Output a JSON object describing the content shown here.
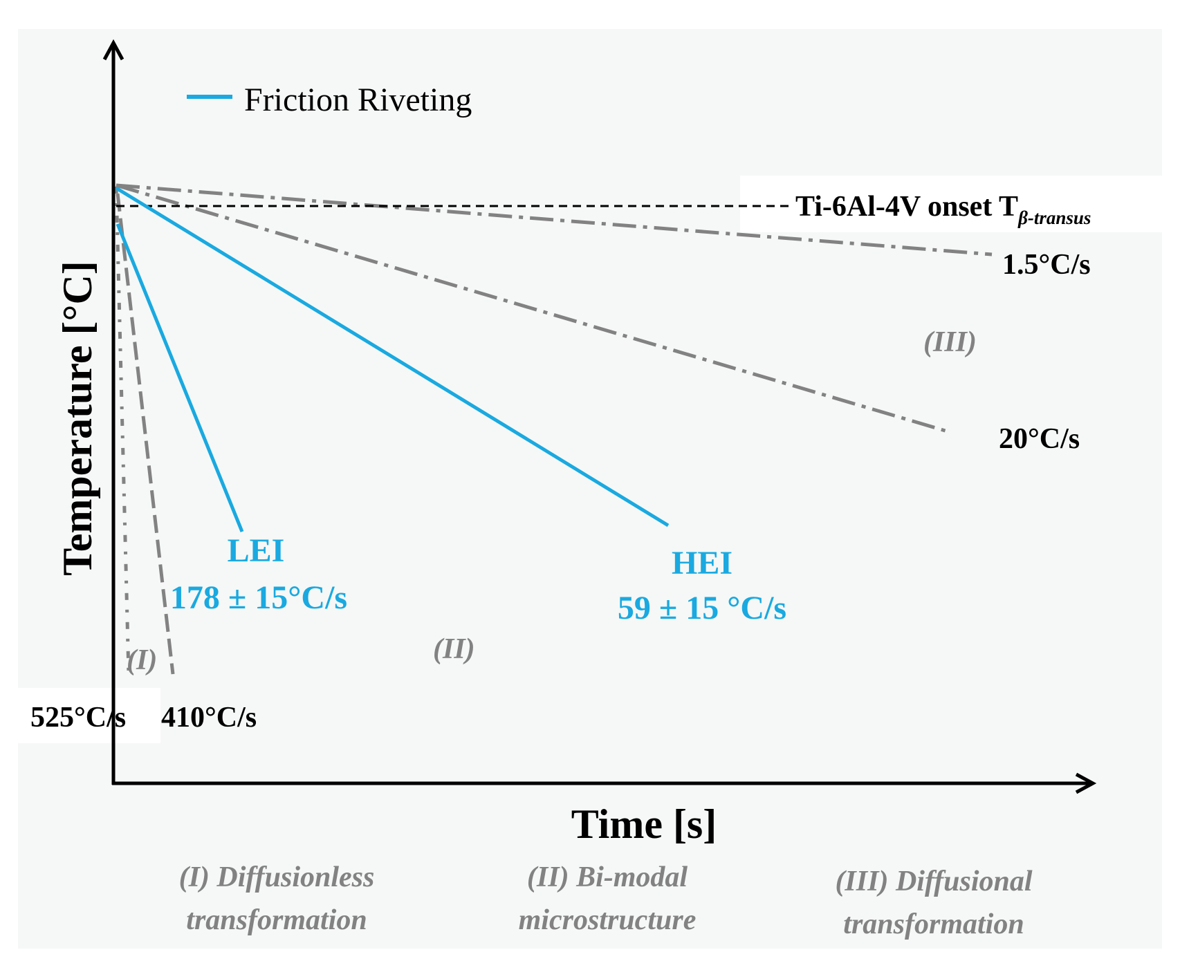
{
  "legend": {
    "label": "Friction Riveting",
    "color": "#1aa9e0"
  },
  "axes": {
    "xlabel": "Time [s]",
    "ylabel": "Temperature [°C]"
  },
  "reference": {
    "label_main": "Ti-6Al-4V onset T",
    "label_sub": "β-transus"
  },
  "cooling_rates": {
    "r525": "525°C/s",
    "r410": "410°C/s",
    "r20": "20°C/s",
    "r1_5": "1.5°C/s"
  },
  "friction_riveting": {
    "lei_label": "LEI",
    "lei_rate": "178 ± 15°C/s",
    "hei_label": "HEI",
    "hei_rate": "59 ± 15 °C/s"
  },
  "regions": {
    "r1": "(I)",
    "r2": "(II)",
    "r3": "(III)"
  },
  "captions": {
    "c1_line1": "(I) Diffusionless",
    "c1_line2": "transformation",
    "c2_line1": "(II) Bi-modal",
    "c2_line2": "microstructure",
    "c3_line1": "(III) Diffusional",
    "c3_line2": "transformation"
  },
  "colors": {
    "friction_riveting": "#1aa9e0",
    "reference_curves": "#828282",
    "axes": "#000000"
  }
}
